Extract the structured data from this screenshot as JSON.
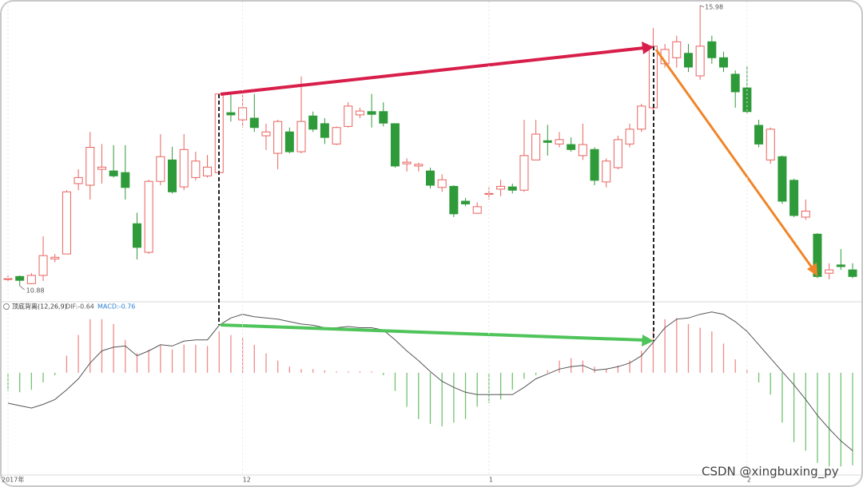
{
  "chart_data": [
    {
      "type": "candlestick",
      "categories": [
        "2017年",
        null,
        null,
        null,
        null,
        null,
        null,
        null,
        null,
        null,
        null,
        null,
        null,
        null,
        null,
        null,
        null,
        null,
        null,
        null,
        "12",
        null,
        null,
        null,
        null,
        null,
        null,
        null,
        null,
        null,
        null,
        null,
        null,
        null,
        null,
        null,
        null,
        null,
        null,
        null,
        null,
        "1",
        null,
        null,
        null,
        null,
        null,
        null,
        null,
        null,
        null,
        null,
        null,
        null,
        null,
        null,
        null,
        null,
        null,
        null,
        null,
        null,
        null,
        "2",
        null,
        null,
        null,
        null,
        null,
        null,
        null,
        null,
        null
      ],
      "open": [
        11.0,
        11.05,
        10.92,
        11.07,
        11.37,
        11.46,
        12.74,
        12.71,
        13.0,
        12.97,
        12.94,
        12.01,
        11.49,
        12.78,
        13.17,
        12.68,
        12.85,
        12.88,
        12.94,
        14.03,
        13.9,
        13.93,
        13.61,
        13.29,
        13.68,
        13.32,
        13.97,
        13.83,
        13.46,
        13.78,
        13.99,
        14.05,
        14.05,
        13.83,
        13.1,
        13.06,
        12.97,
        12.67,
        12.69,
        12.42,
        12.2,
        12.56,
        12.64,
        12.68,
        12.62,
        13.17,
        13.52,
        13.46,
        13.45,
        13.25,
        13.36,
        12.77,
        13.03,
        13.46,
        13.73,
        14.12,
        14.92,
        15.03,
        15.11,
        14.7,
        15.32,
        15.03,
        14.73,
        14.48,
        13.8,
        13.17,
        13.23,
        12.8,
        12.13,
        11.82,
        11.11,
        11.26,
        11.17
      ],
      "high": [
        11.07,
        11.07,
        11.11,
        11.78,
        11.46,
        12.62,
        13.0,
        13.68,
        13.46,
        13.44,
        13.44,
        12.21,
        12.81,
        13.64,
        13.41,
        13.64,
        13.32,
        13.26,
        14.37,
        14.37,
        14.37,
        14.37,
        13.83,
        13.9,
        13.76,
        14.69,
        14.05,
        13.93,
        13.78,
        14.22,
        14.12,
        14.37,
        14.22,
        13.83,
        13.2,
        13.12,
        13.03,
        12.91,
        12.71,
        12.48,
        12.4,
        12.67,
        12.81,
        12.74,
        13.9,
        13.9,
        13.81,
        13.68,
        13.58,
        13.83,
        13.4,
        13.2,
        13.61,
        13.83,
        14.19,
        15.57,
        15.28,
        15.43,
        15.28,
        15.98,
        15.43,
        15.14,
        14.8,
        14.89,
        13.9,
        13.76,
        13.25,
        12.83,
        12.45,
        11.84,
        11.29,
        11.55,
        11.29
      ],
      "low": [
        10.97,
        10.88,
        10.91,
        10.97,
        11.31,
        11.46,
        12.62,
        12.45,
        12.74,
        12.85,
        12.45,
        11.36,
        11.46,
        12.71,
        12.56,
        12.62,
        12.8,
        12.85,
        12.91,
        13.87,
        13.76,
        13.68,
        13.35,
        13.0,
        13.29,
        13.29,
        13.68,
        13.46,
        13.44,
        13.76,
        13.93,
        13.76,
        13.78,
        13.03,
        12.96,
        12.96,
        12.65,
        12.59,
        12.13,
        12.33,
        12.19,
        12.45,
        12.51,
        12.56,
        12.59,
        13.17,
        13.25,
        13.4,
        13.32,
        13.17,
        12.71,
        12.67,
        13.0,
        13.4,
        13.68,
        14.07,
        14.85,
        14.85,
        14.77,
        14.63,
        14.92,
        14.77,
        14.12,
        14.02,
        13.4,
        13.1,
        12.37,
        12.13,
        12.08,
        11.02,
        11.0,
        11.17,
        11.02
      ],
      "close": [
        11.01,
        10.98,
        11.07,
        11.43,
        11.4,
        12.59,
        12.85,
        13.4,
        13.04,
        12.88,
        12.67,
        11.58,
        12.78,
        13.23,
        12.59,
        13.36,
        13.15,
        13.04,
        14.37,
        13.99,
        14.12,
        13.76,
        13.68,
        13.87,
        13.32,
        13.87,
        13.73,
        13.58,
        13.76,
        14.15,
        14.06,
        14.0,
        13.84,
        13.06,
        13.13,
        13.09,
        12.71,
        12.81,
        12.19,
        12.37,
        12.32,
        12.56,
        12.69,
        12.62,
        13.25,
        13.64,
        13.49,
        13.54,
        13.36,
        13.45,
        12.8,
        13.15,
        13.54,
        13.73,
        14.15,
        15.24,
        15.18,
        15.32,
        14.86,
        15.24,
        15.03,
        14.86,
        14.41,
        14.05,
        13.46,
        13.73,
        12.42,
        12.16,
        12.24,
        11.05,
        11.17,
        11.23,
        11.05
      ],
      "up_color": "#e8635f",
      "down_color": "#2f9a3a",
      "ylim": [
        10.59,
        16.08
      ],
      "watermark": "CSDN @xingbuxing_py"
    },
    {
      "type": "macd",
      "indicator": "顶底背离(12,26,9)",
      "series": [
        {
          "name": "DIF:-0.64",
          "color": "#555555",
          "values": [
            -0.25,
            -0.27,
            -0.29,
            -0.26,
            -0.22,
            -0.14,
            -0.05,
            0.08,
            0.18,
            0.21,
            0.22,
            0.14,
            0.18,
            0.23,
            0.22,
            0.26,
            0.27,
            0.27,
            0.39,
            0.45,
            0.48,
            0.46,
            0.45,
            0.44,
            0.42,
            0.4,
            0.39,
            0.37,
            0.37,
            0.38,
            0.37,
            0.37,
            0.35,
            0.27,
            0.18,
            0.1,
            0.01,
            -0.07,
            -0.12,
            -0.16,
            -0.18,
            -0.18,
            -0.18,
            -0.18,
            -0.12,
            -0.05,
            -0.01,
            0.03,
            0.05,
            0.06,
            0.02,
            0.03,
            0.05,
            0.08,
            0.14,
            0.25,
            0.37,
            0.44,
            0.45,
            0.48,
            0.5,
            0.48,
            0.42,
            0.34,
            0.23,
            0.12,
            0.01,
            -0.1,
            -0.22,
            -0.35,
            -0.46,
            -0.56,
            -0.64
          ]
        }
      ],
      "histogram": {
        "name": "MACD:-0.76",
        "color": "#2f7fd6",
        "up_color": "#f08a8a",
        "down_color": "#72c272",
        "values": [
          -0.15,
          -0.16,
          -0.14,
          -0.08,
          -0.02,
          0.14,
          0.31,
          0.44,
          0.44,
          0.4,
          0.27,
          0.16,
          0.19,
          0.23,
          0.19,
          0.23,
          0.23,
          0.22,
          0.34,
          0.31,
          0.29,
          0.23,
          0.16,
          0.1,
          0.05,
          0.03,
          0.03,
          0.02,
          0.01,
          0.01,
          0.01,
          0.01,
          -0.02,
          -0.15,
          -0.28,
          -0.38,
          -0.42,
          -0.44,
          -0.41,
          -0.38,
          -0.28,
          -0.25,
          -0.22,
          -0.14,
          -0.05,
          -0.02,
          0.02,
          0.1,
          0.12,
          0.1,
          0.05,
          0.03,
          0.06,
          0.1,
          0.18,
          0.34,
          0.44,
          0.45,
          0.4,
          0.37,
          0.34,
          0.24,
          0.11,
          0.03,
          -0.08,
          -0.18,
          -0.41,
          -0.57,
          -0.64,
          -0.74,
          -0.77,
          -0.77,
          -0.76
        ]
      },
      "ylim": [
        -0.86,
        0.57
      ]
    }
  ]
}
